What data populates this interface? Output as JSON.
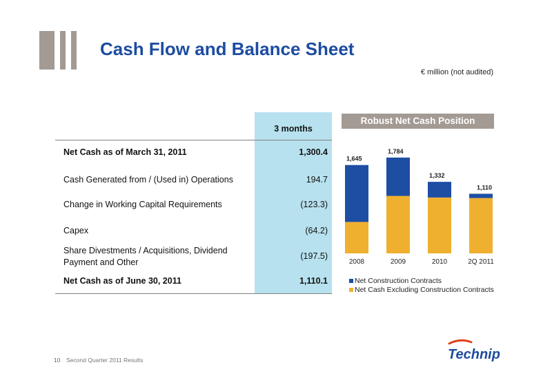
{
  "header": {
    "title": "Cash Flow and Balance Sheet",
    "subtitle": "€ million (not audited)"
  },
  "table": {
    "column_header": "3 months",
    "rows": [
      {
        "label": "Net Cash as of March 31, 2011",
        "value": "1,300.4"
      },
      {
        "label": "Cash Generated from / (Used in) Operations",
        "value": "194.7"
      },
      {
        "label": "Change in Working Capital Requirements",
        "value": "(123.3)"
      },
      {
        "label": "Capex",
        "value": "(64.2)"
      },
      {
        "label_line1": "Share Divestments / Acquisitions, Dividend",
        "label_line2": "Payment and Other",
        "value": "(197.5)"
      },
      {
        "label": "Net Cash as of June 30, 2011",
        "value": "1,110.1"
      }
    ]
  },
  "chart_data": {
    "type": "bar",
    "stacked": true,
    "title": "Robust Net Cash Position",
    "categories": [
      "2008",
      "2009",
      "2010",
      "2Q 2011"
    ],
    "totals": [
      1645,
      1784,
      1332,
      1110
    ],
    "total_labels": [
      "1,645",
      "1,784",
      "1,332",
      "1,110"
    ],
    "series": [
      {
        "name": "Net Cash Excluding Construction Contracts",
        "color": "#efb030",
        "values": [
          585,
          1070,
          1040,
          1030
        ]
      },
      {
        "name": "Net Construction Contracts",
        "color": "#1d4ea4",
        "values": [
          1060,
          714,
          292,
          80
        ]
      }
    ],
    "ylim": [
      0,
      2000
    ],
    "legend": "bottom",
    "grid": false
  },
  "footer": {
    "page_number": "10",
    "text": "Second Quarter 2011 Results"
  },
  "brand": {
    "name": "Technip",
    "color": "#1c4ca0",
    "accent": "#e0401a"
  }
}
